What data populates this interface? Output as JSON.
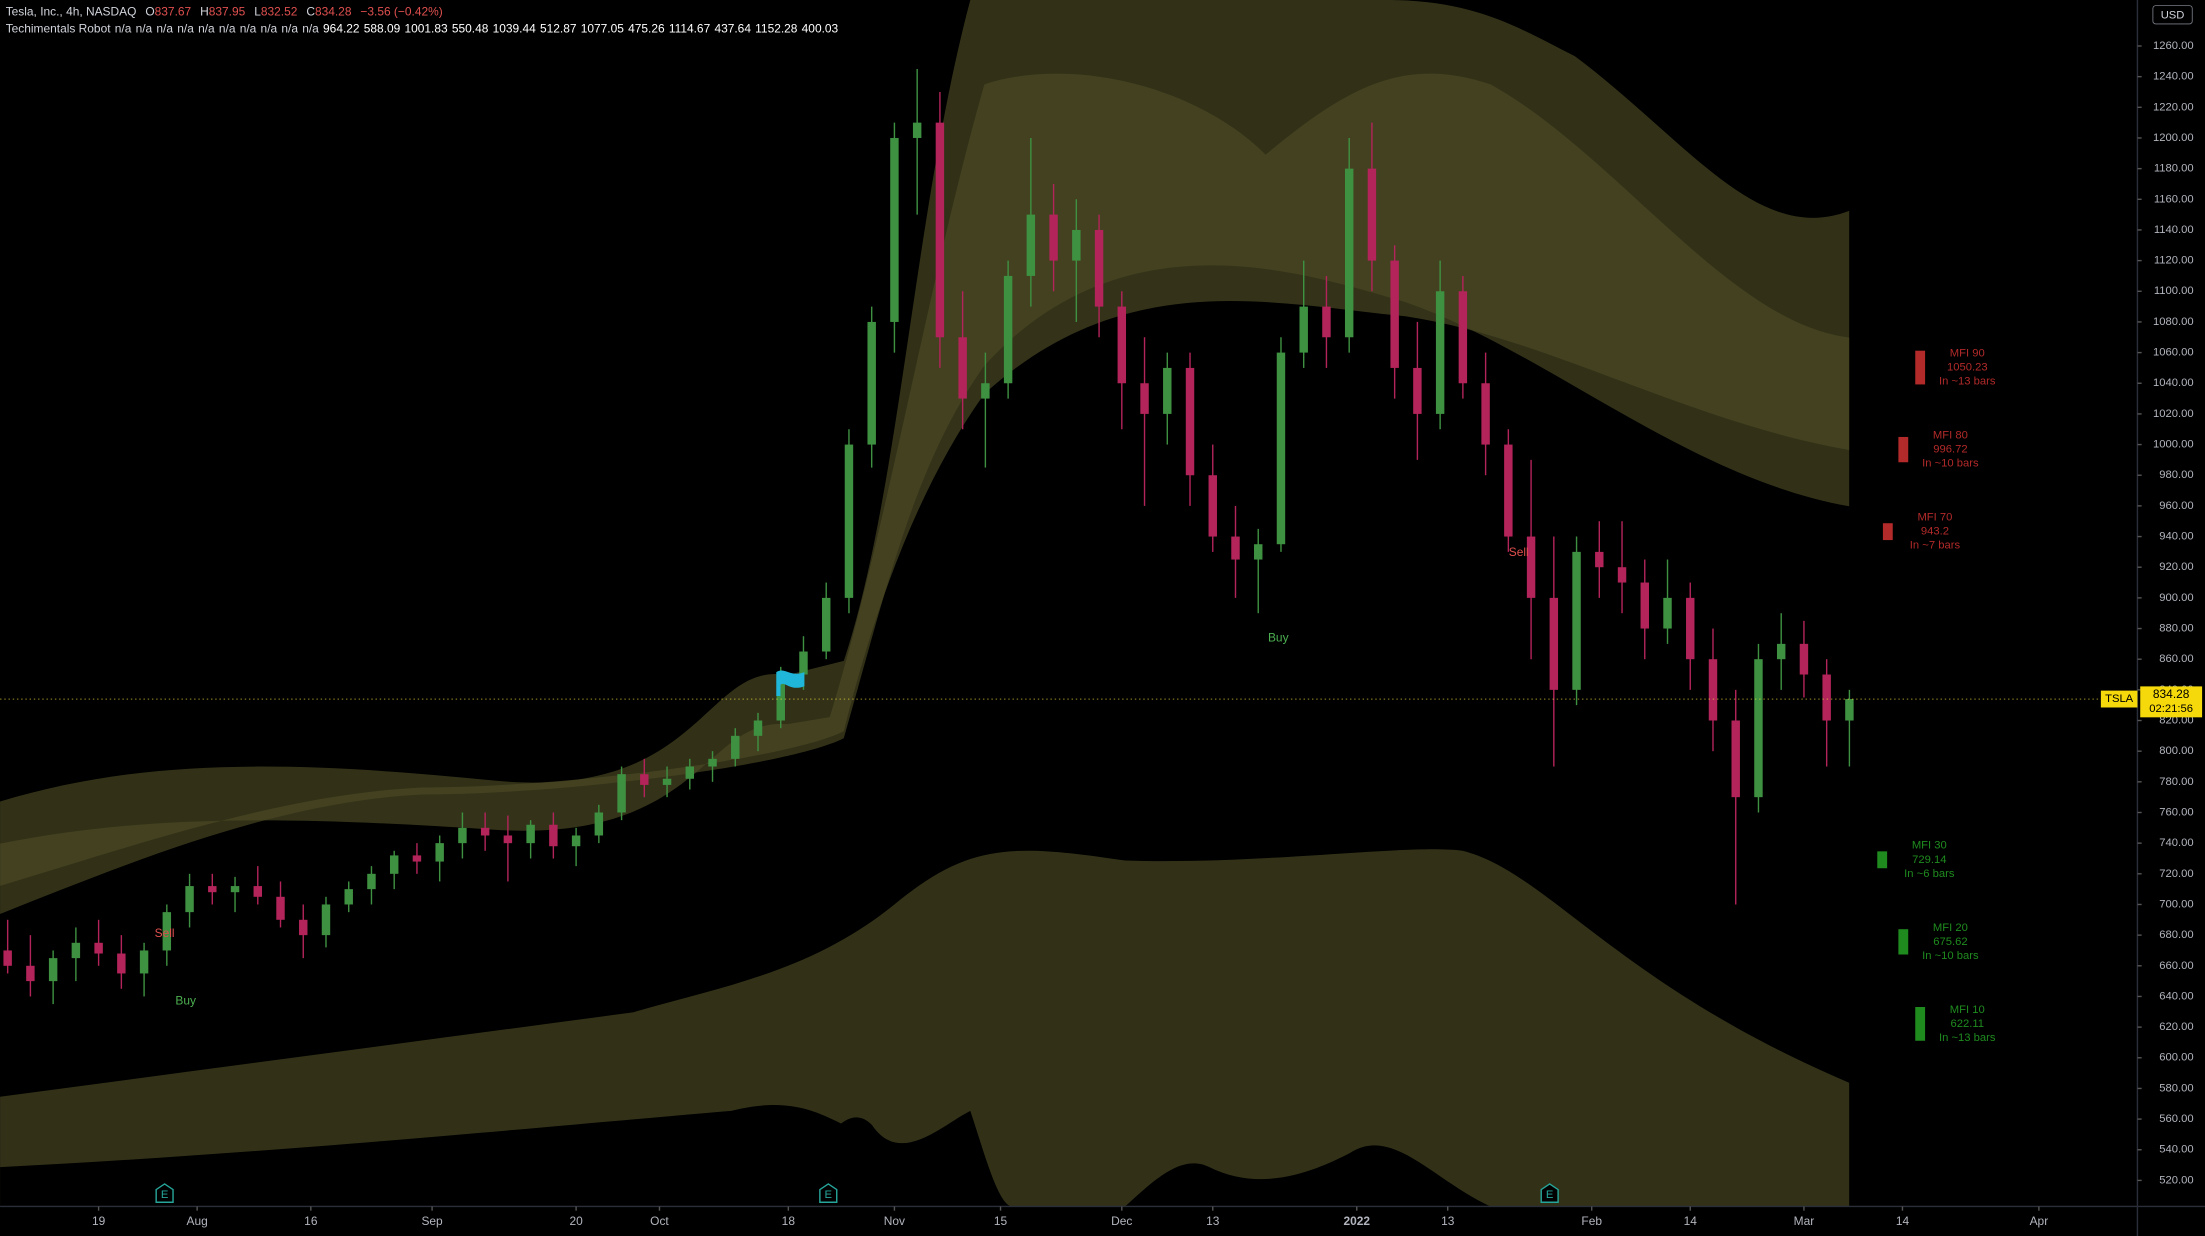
{
  "header": {
    "symbol": "Tesla, Inc., 4h, NASDAQ",
    "ohlc": [
      {
        "label": "O",
        "value": 837.67
      },
      {
        "label": "H",
        "value": 837.95
      },
      {
        "label": "L",
        "value": 832.52
      },
      {
        "label": "C",
        "value": 834.28
      }
    ],
    "change": "−3.56 (−0.42%)",
    "indicator": "Techimentals Robot",
    "indicator_values": [
      "n/a",
      "n/a",
      "n/a",
      "n/a",
      "n/a",
      "n/a",
      "n/a",
      "n/a",
      "n/a",
      "n/a",
      964.22,
      588.09,
      1001.83,
      550.48,
      1039.44,
      512.87,
      1077.05,
      475.26,
      1114.67,
      437.64,
      1152.28,
      400.03
    ]
  },
  "currency": "USD",
  "symbol_tag": "TSLA",
  "countdown": "02:21:56",
  "earnings_marker": "E",
  "signals": [
    {
      "label": "Sell",
      "color": "#e0504f"
    },
    {
      "label": "Buy",
      "color": "#4caf50"
    },
    {
      "label": "Buy",
      "color": "#4caf50"
    },
    {
      "label": "Sell",
      "color": "#e0504f"
    }
  ],
  "mfi": [
    {
      "name": "MFI 90",
      "value": 1050.23,
      "eta": "In ~13 bars",
      "color": "#b22a2a"
    },
    {
      "name": "MFI 80",
      "value": 996.72,
      "eta": "In ~10 bars",
      "color": "#b22a2a"
    },
    {
      "name": "MFI 70",
      "value": 943.2,
      "eta": "In ~7 bars",
      "color": "#b22a2a"
    },
    {
      "name": "MFI 30",
      "value": 729.14,
      "eta": "In ~6 bars",
      "color": "#1f8b1f"
    },
    {
      "name": "MFI 20",
      "value": 675.62,
      "eta": "In ~10 bars",
      "color": "#1f8b1f"
    },
    {
      "name": "MFI 10",
      "value": 622.11,
      "eta": "In ~13 bars",
      "color": "#1f8b1f"
    }
  ],
  "chart_data": {
    "type": "candlestick",
    "up_color": "#3f9142",
    "down_color": "#b3245a",
    "xlim": [
      5,
      287
    ],
    "ylim": [
      503,
      1290
    ],
    "xticks": [
      {
        "value": 18,
        "label": "19"
      },
      {
        "value": 31,
        "label": "Aug"
      },
      {
        "value": 46,
        "label": "16"
      },
      {
        "value": 62,
        "label": "Sep"
      },
      {
        "value": 81,
        "label": "20"
      },
      {
        "value": 92,
        "label": "Oct"
      },
      {
        "value": 109,
        "label": "18"
      },
      {
        "value": 123,
        "label": "Nov"
      },
      {
        "value": 137,
        "label": "15"
      },
      {
        "value": 153,
        "label": "Dec"
      },
      {
        "value": 165,
        "label": "13"
      },
      {
        "value": 184,
        "label": "2022"
      },
      {
        "value": 196,
        "label": "13"
      },
      {
        "value": 215,
        "label": "Feb"
      },
      {
        "value": 228,
        "label": "14"
      },
      {
        "value": 243,
        "label": "Mar"
      },
      {
        "value": 256,
        "label": "14"
      },
      {
        "value": 274,
        "label": "Apr"
      }
    ],
    "yticks": [
      {
        "value": 520,
        "label": "520.00"
      },
      {
        "value": 540,
        "label": "540.00"
      },
      {
        "value": 560,
        "label": "560.00"
      },
      {
        "value": 580,
        "label": "580.00"
      },
      {
        "value": 600,
        "label": "600.00"
      },
      {
        "value": 620,
        "label": "620.00"
      },
      {
        "value": 640,
        "label": "640.00"
      },
      {
        "value": 660,
        "label": "660.00"
      },
      {
        "value": 680,
        "label": "680.00"
      },
      {
        "value": 700,
        "label": "700.00"
      },
      {
        "value": 720,
        "label": "720.00"
      },
      {
        "value": 740,
        "label": "740.00"
      },
      {
        "value": 760,
        "label": "760.00"
      },
      {
        "value": 780,
        "label": "780.00"
      },
      {
        "value": 800,
        "label": "800.00"
      },
      {
        "value": 820,
        "label": "820.00"
      },
      {
        "value": 840,
        "label": "840.00"
      },
      {
        "value": 860,
        "label": "860.00"
      },
      {
        "value": 880,
        "label": "880.00"
      },
      {
        "value": 900,
        "label": "900.00"
      },
      {
        "value": 920,
        "label": "920.00"
      },
      {
        "value": 940,
        "label": "940.00"
      },
      {
        "value": 960,
        "label": "960.00"
      },
      {
        "value": 980,
        "label": "980.00"
      },
      {
        "value": 1000,
        "label": "1000.00"
      },
      {
        "value": 1020,
        "label": "1020.00"
      },
      {
        "value": 1040,
        "label": "1040.00"
      },
      {
        "value": 1060,
        "label": "1060.00"
      },
      {
        "value": 1080,
        "label": "1080.00"
      },
      {
        "value": 1100,
        "label": "1100.00"
      },
      {
        "value": 1120,
        "label": "1120.00"
      },
      {
        "value": 1140,
        "label": "1140.00"
      },
      {
        "value": 1160,
        "label": "1160.00"
      },
      {
        "value": 1180,
        "label": "1180.00"
      },
      {
        "value": 1200,
        "label": "1200.00"
      },
      {
        "value": 1220,
        "label": "1220.00"
      },
      {
        "value": 1240,
        "label": "1240.00"
      },
      {
        "value": 1260,
        "label": "1260.00"
      }
    ],
    "x": [
      6,
      9,
      12,
      15,
      18,
      21,
      24,
      27,
      30,
      33,
      36,
      39,
      42,
      45,
      48,
      51,
      54,
      57,
      60,
      63,
      66,
      69,
      72,
      75,
      78,
      81,
      84,
      87,
      90,
      93,
      96,
      99,
      102,
      105,
      108,
      111,
      114,
      117,
      120,
      123,
      126,
      129,
      132,
      135,
      138,
      141,
      144,
      147,
      150,
      153,
      156,
      159,
      162,
      165,
      168,
      171,
      174,
      177,
      180,
      183,
      186,
      189,
      192,
      195,
      198,
      201,
      204,
      207,
      210,
      213,
      216,
      219,
      222,
      225,
      228,
      231,
      234,
      237,
      240,
      243,
      246,
      249
    ],
    "open": [
      670,
      660,
      650,
      665,
      675,
      668,
      655,
      670,
      695,
      712,
      708,
      712,
      705,
      690,
      680,
      700,
      710,
      720,
      732,
      728,
      740,
      750,
      745,
      740,
      752,
      738,
      745,
      760,
      785,
      778,
      782,
      790,
      795,
      810,
      820,
      850,
      865,
      900,
      1000,
      1080,
      1200,
      1210,
      1070,
      1030,
      1040,
      1110,
      1150,
      1120,
      1140,
      1090,
      1040,
      1020,
      1050,
      980,
      940,
      925,
      935,
      1060,
      1090,
      1070,
      1180,
      1120,
      1050,
      1020,
      1100,
      1040,
      1000,
      940,
      900,
      840,
      930,
      920,
      910,
      880,
      900,
      860,
      820,
      770,
      860,
      870,
      850,
      820
    ],
    "high": [
      690,
      680,
      670,
      685,
      690,
      680,
      675,
      700,
      720,
      720,
      718,
      725,
      715,
      700,
      705,
      715,
      725,
      735,
      740,
      745,
      760,
      760,
      758,
      755,
      760,
      750,
      765,
      790,
      795,
      790,
      795,
      800,
      815,
      825,
      855,
      875,
      910,
      1010,
      1090,
      1210,
      1245,
      1230,
      1100,
      1060,
      1120,
      1200,
      1170,
      1160,
      1150,
      1100,
      1070,
      1060,
      1060,
      1000,
      960,
      945,
      1070,
      1120,
      1110,
      1200,
      1210,
      1130,
      1080,
      1120,
      1110,
      1060,
      1010,
      990,
      940,
      940,
      950,
      950,
      925,
      925,
      910,
      880,
      840,
      870,
      890,
      885,
      860,
      840
    ],
    "low": [
      655,
      640,
      635,
      650,
      660,
      645,
      640,
      660,
      685,
      700,
      695,
      700,
      685,
      665,
      672,
      695,
      700,
      710,
      720,
      715,
      730,
      735,
      715,
      730,
      730,
      725,
      740,
      755,
      770,
      770,
      775,
      780,
      790,
      800,
      815,
      840,
      860,
      890,
      985,
      1060,
      1150,
      1050,
      1010,
      985,
      1030,
      1090,
      1100,
      1080,
      1070,
      1010,
      960,
      1000,
      960,
      930,
      900,
      890,
      930,
      1050,
      1050,
      1060,
      1100,
      1030,
      990,
      1010,
      1030,
      980,
      930,
      860,
      790,
      830,
      900,
      890,
      860,
      870,
      840,
      800,
      700,
      760,
      840,
      835,
      790,
      790
    ],
    "close": [
      660,
      650,
      665,
      675,
      668,
      655,
      670,
      695,
      712,
      708,
      712,
      705,
      690,
      680,
      700,
      710,
      720,
      732,
      728,
      740,
      750,
      745,
      740,
      752,
      738,
      745,
      760,
      785,
      778,
      782,
      790,
      795,
      810,
      820,
      850,
      865,
      900,
      1000,
      1080,
      1200,
      1210,
      1070,
      1030,
      1040,
      1110,
      1150,
      1120,
      1140,
      1090,
      1040,
      1020,
      1050,
      980,
      940,
      925,
      935,
      1060,
      1090,
      1070,
      1180,
      1120,
      1050,
      1020,
      1100,
      1040,
      1000,
      940,
      900,
      840,
      930,
      920,
      910,
      880,
      900,
      860,
      820,
      770,
      860,
      870,
      850,
      820,
      834
    ]
  }
}
